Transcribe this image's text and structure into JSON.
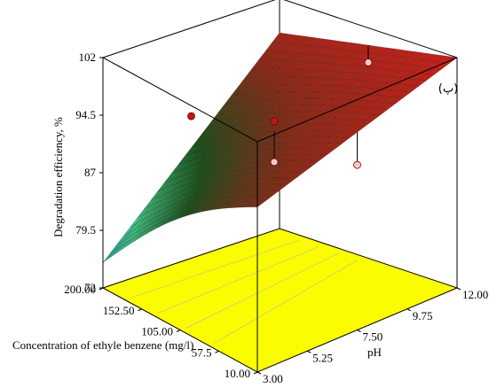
{
  "panel_label": "(پ)",
  "chart_data": {
    "type": "surface3d",
    "title": "",
    "xlabel": "Concentration of ethyle benzene (mg/l)",
    "ylabel": "pH",
    "zlabel": "Degradation efficiency, %",
    "x_ticks": [
      "200.00",
      "152.50",
      "105.00",
      "57.5",
      "10.00"
    ],
    "y_ticks": [
      "3.00",
      "5.25",
      "7.50",
      "9.75",
      "12.00"
    ],
    "z_ticks": [
      "72",
      "79.5",
      "87",
      "94.5",
      "102"
    ],
    "xlim": [
      10,
      200
    ],
    "ylim": [
      3,
      12
    ],
    "zlim": [
      72,
      102
    ],
    "surface_corners": [
      {
        "x": 200,
        "y": 3,
        "z": 75.3
      },
      {
        "x": 10,
        "y": 3,
        "z": 93.5
      },
      {
        "x": 200,
        "y": 12,
        "z": 97.5
      },
      {
        "x": 10,
        "y": 12,
        "z": 102
      }
    ],
    "points": [
      {
        "x": 200,
        "y": 7.5,
        "z": 90.5
      },
      {
        "x": 105,
        "y": 7.5,
        "z": 94.5
      },
      {
        "x": 105,
        "y": 12,
        "z": 97.5
      },
      {
        "x": 10,
        "y": 7.5,
        "z": 93.5
      },
      {
        "x": 105,
        "y": 7.5,
        "z": 89.2
      }
    ],
    "colormap": [
      "#1f7fc4",
      "#3fbf7f",
      "#1a4f1a",
      "#8a2a18",
      "#c8201a"
    ],
    "floor_color": "#fcfc00"
  }
}
